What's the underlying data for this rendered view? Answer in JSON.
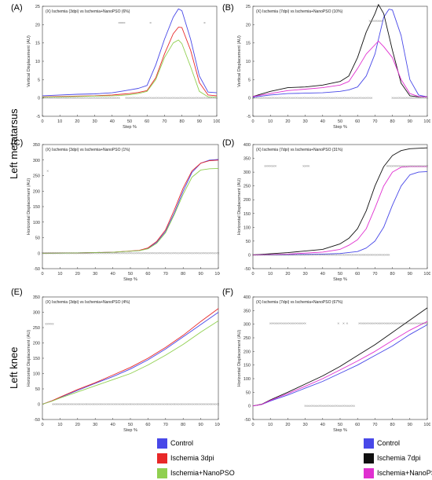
{
  "row_labels": [
    "Left metatarsus",
    "Left knee"
  ],
  "legends": [
    {
      "items": [
        {
          "label": "Control",
          "color": "#4848e8"
        },
        {
          "label": "Ischemia 3dpi",
          "color": "#e82828"
        },
        {
          "label": "Ischemia+NanoPSO",
          "color": "#90d050"
        }
      ]
    },
    {
      "items": [
        {
          "label": "Control",
          "color": "#4848e8"
        },
        {
          "label": "Ischemia 7dpi",
          "color": "#101010"
        },
        {
          "label": "Ischemia+NanoPSO",
          "color": "#e030d0"
        }
      ]
    }
  ],
  "chart_data": [
    {
      "panel": "(A)",
      "type": "line",
      "title": "(X) Ischemia (3dpi) vs Ischemia+NanoPSO (6%)",
      "xlabel": "Step %",
      "ylabel": "Vertical Displacement (AU)",
      "xlim": [
        0,
        100
      ],
      "ylim": [
        -5,
        25
      ],
      "xticks": [
        0,
        10,
        20,
        30,
        40,
        50,
        60,
        70,
        80,
        90,
        100
      ],
      "yticks": [
        -5,
        0,
        5,
        10,
        15,
        20,
        25
      ],
      "series": [
        {
          "color": "#4848e8",
          "x": [
            0,
            10,
            20,
            30,
            40,
            45,
            50,
            55,
            60,
            65,
            70,
            75,
            78,
            80,
            85,
            90,
            95,
            100
          ],
          "y": [
            0.6,
            0.8,
            1.0,
            1.1,
            1.4,
            1.8,
            2.2,
            2.6,
            3.4,
            9,
            16,
            22,
            24.3,
            23.8,
            16,
            6,
            1.6,
            1.4
          ]
        },
        {
          "color": "#e82828",
          "x": [
            0,
            10,
            20,
            30,
            40,
            45,
            50,
            55,
            60,
            65,
            70,
            75,
            78,
            80,
            85,
            90,
            95,
            100
          ],
          "y": [
            0.3,
            0.4,
            0.5,
            0.6,
            0.8,
            1.0,
            1.2,
            1.5,
            2.0,
            5.5,
            12,
            17.5,
            19.3,
            19.2,
            13,
            4.2,
            0.8,
            0.6
          ]
        },
        {
          "color": "#90d050",
          "x": [
            0,
            10,
            20,
            30,
            40,
            45,
            50,
            55,
            60,
            65,
            70,
            75,
            78,
            80,
            85,
            90,
            95,
            100
          ],
          "y": [
            0.2,
            0.3,
            0.4,
            0.5,
            0.6,
            0.7,
            0.9,
            1.2,
            1.8,
            5,
            11,
            15,
            15.8,
            14.8,
            8.5,
            1.8,
            0.3,
            0.2
          ]
        }
      ],
      "sig_top": {
        "y": 20.5,
        "x": [
          44,
          45,
          46,
          47,
          62,
          93
        ]
      },
      "sig_bottom": {
        "y": 0,
        "x_ranges": [
          [
            0,
            44
          ],
          [
            48,
            100
          ]
        ]
      }
    },
    {
      "panel": "(B)",
      "type": "line",
      "title": "(X) Ischemia (7dpi) vs Ischemia+NanoPSO (10%)",
      "xlabel": "Step %",
      "ylabel": "Vertical Displacement (AU)",
      "xlim": [
        0,
        100
      ],
      "ylim": [
        -5,
        25
      ],
      "xticks": [
        0,
        10,
        20,
        30,
        40,
        50,
        60,
        70,
        80,
        90,
        100
      ],
      "yticks": [
        -5,
        0,
        5,
        10,
        15,
        20,
        25
      ],
      "series": [
        {
          "color": "#4848e8",
          "x": [
            0,
            10,
            20,
            30,
            40,
            50,
            55,
            60,
            65,
            70,
            75,
            78,
            80,
            85,
            90,
            95,
            100
          ],
          "y": [
            0.2,
            0.8,
            1.2,
            1.3,
            1.4,
            1.8,
            2.2,
            3,
            6,
            12,
            22,
            24.2,
            24,
            17,
            5,
            0.8,
            0.3
          ]
        },
        {
          "color": "#101010",
          "x": [
            0,
            10,
            20,
            30,
            40,
            50,
            55,
            60,
            65,
            70,
            72,
            75,
            80,
            85,
            90,
            95,
            100
          ],
          "y": [
            0.4,
            1.8,
            2.8,
            3.0,
            3.5,
            4.5,
            6,
            11,
            18,
            23,
            25.5,
            23,
            13,
            4,
            0.6,
            0.3,
            0.3
          ]
        },
        {
          "color": "#e030d0",
          "x": [
            0,
            10,
            20,
            30,
            40,
            50,
            55,
            60,
            65,
            70,
            72,
            75,
            80,
            85,
            90,
            95,
            100
          ],
          "y": [
            0.4,
            1.2,
            2.0,
            2.4,
            2.8,
            3.5,
            4.5,
            8,
            12,
            14.5,
            15.5,
            14,
            11,
            5,
            1.2,
            0.4,
            0.3
          ]
        }
      ],
      "sig_top": {
        "y": 21,
        "x_ranges": [
          [
            67,
            74
          ]
        ]
      },
      "sig_bottom": {
        "y": 0,
        "x_ranges": [
          [
            0,
            68
          ],
          [
            80,
            100
          ]
        ]
      }
    },
    {
      "panel": "(C)",
      "type": "line",
      "title": "(X) Ischemia (3dpi) vs Ischemia+NanoPSO (1%)",
      "xlabel": "Step %",
      "ylabel": "Horizontal Displacement (AU)",
      "xlim": [
        0,
        100
      ],
      "ylim": [
        -50,
        350
      ],
      "xticks": [
        0,
        10,
        20,
        30,
        40,
        50,
        60,
        70,
        80,
        90,
        100
      ],
      "yticks": [
        -50,
        0,
        50,
        100,
        150,
        200,
        250,
        300,
        350
      ],
      "series": [
        {
          "color": "#4848e8",
          "x": [
            0,
            20,
            40,
            55,
            60,
            65,
            70,
            75,
            80,
            85,
            90,
            95,
            100
          ],
          "y": [
            0,
            1,
            3,
            8,
            15,
            35,
            70,
            130,
            200,
            260,
            290,
            300,
            302
          ]
        },
        {
          "color": "#e82828",
          "x": [
            0,
            20,
            40,
            55,
            60,
            65,
            70,
            75,
            80,
            85,
            90,
            95,
            100
          ],
          "y": [
            0,
            1,
            3,
            9,
            17,
            38,
            75,
            140,
            210,
            265,
            290,
            298,
            300
          ]
        },
        {
          "color": "#90d050",
          "x": [
            0,
            20,
            40,
            55,
            60,
            65,
            70,
            75,
            80,
            85,
            90,
            95,
            100
          ],
          "y": [
            0,
            1,
            3,
            8,
            14,
            32,
            66,
            125,
            190,
            245,
            268,
            272,
            273
          ]
        }
      ],
      "sig_top": {
        "y": 265,
        "x": [
          3
        ]
      },
      "sig_bottom": {
        "y": 0,
        "x_ranges": [
          [
            0,
            100
          ]
        ]
      }
    },
    {
      "panel": "(D)",
      "type": "line",
      "title": "(X) Ischemia (7dpi) vs Ischemia+NanoPSO (31%)",
      "xlabel": "Step %",
      "ylabel": "Horizontal Displacement (AU)",
      "xlim": [
        0,
        100
      ],
      "ylim": [
        -50,
        400
      ],
      "xticks": [
        0,
        10,
        20,
        30,
        40,
        50,
        60,
        70,
        80,
        90,
        100
      ],
      "yticks": [
        -50,
        0,
        50,
        100,
        150,
        200,
        250,
        300,
        350,
        400
      ],
      "series": [
        {
          "color": "#4848e8",
          "x": [
            0,
            20,
            40,
            50,
            60,
            65,
            70,
            75,
            80,
            85,
            90,
            95,
            100
          ],
          "y": [
            0,
            1,
            3,
            5,
            12,
            25,
            50,
            100,
            180,
            250,
            290,
            300,
            302
          ]
        },
        {
          "color": "#101010",
          "x": [
            0,
            20,
            40,
            50,
            55,
            60,
            65,
            70,
            75,
            80,
            85,
            90,
            100
          ],
          "y": [
            0,
            8,
            20,
            40,
            60,
            95,
            160,
            250,
            320,
            360,
            378,
            385,
            388
          ]
        },
        {
          "color": "#e030d0",
          "x": [
            0,
            20,
            40,
            50,
            55,
            60,
            65,
            70,
            75,
            80,
            85,
            90,
            100
          ],
          "y": [
            0,
            3,
            10,
            20,
            35,
            55,
            95,
            170,
            250,
            300,
            318,
            320,
            320
          ]
        }
      ],
      "sig_top": {
        "y": 322,
        "x_ranges": [
          [
            7,
            13
          ],
          [
            29,
            32
          ],
          [
            77,
            100
          ]
        ]
      },
      "sig_bottom": {
        "y": 0,
        "x_ranges": [
          [
            0,
            78
          ]
        ]
      }
    },
    {
      "panel": "(E)",
      "type": "line",
      "title": "(X) Ischemia (3dpi) vs Ischemia+NanoPSO (4%)",
      "xlabel": "Step %",
      "ylabel": "Horizontal Displacement (AU)",
      "xlim": [
        0,
        100
      ],
      "ylim": [
        -50,
        350
      ],
      "xticks": [
        0,
        10,
        20,
        30,
        40,
        50,
        60,
        70,
        80,
        90,
        100
      ],
      "yticks": [
        -50,
        0,
        50,
        100,
        150,
        200,
        250,
        300,
        350
      ],
      "series": [
        {
          "color": "#4848e8",
          "x": [
            0,
            5,
            10,
            20,
            30,
            40,
            50,
            60,
            70,
            80,
            90,
            100
          ],
          "y": [
            0,
            10,
            22,
            45,
            68,
            90,
            115,
            145,
            180,
            220,
            260,
            300
          ]
        },
        {
          "color": "#e82828",
          "x": [
            0,
            5,
            10,
            20,
            30,
            40,
            50,
            60,
            70,
            80,
            90,
            100
          ],
          "y": [
            0,
            10,
            23,
            48,
            70,
            95,
            120,
            150,
            185,
            225,
            270,
            312
          ]
        },
        {
          "color": "#90d050",
          "x": [
            0,
            5,
            10,
            20,
            30,
            40,
            50,
            60,
            70,
            80,
            90,
            100
          ],
          "y": [
            0,
            9,
            20,
            40,
            60,
            80,
            100,
            128,
            160,
            195,
            235,
            272
          ]
        }
      ],
      "sig_top": {
        "y": 262,
        "x_ranges": [
          [
            2,
            6
          ]
        ]
      },
      "sig_bottom": {
        "y": 0,
        "x_ranges": [
          [
            6,
            100
          ]
        ]
      }
    },
    {
      "panel": "(F)",
      "type": "line",
      "title": "(X) Ischemia (7dpi) vs Ischemia+NanoPSO (67%)",
      "xlabel": "Step %",
      "ylabel": "Horizontal Displacement (AU)",
      "xlim": [
        0,
        100
      ],
      "ylim": [
        -50,
        400
      ],
      "xticks": [
        0,
        10,
        20,
        30,
        40,
        50,
        60,
        70,
        80,
        90,
        100
      ],
      "yticks": [
        -50,
        0,
        50,
        100,
        150,
        200,
        250,
        300,
        350,
        400
      ],
      "series": [
        {
          "color": "#4848e8",
          "x": [
            0,
            5,
            10,
            20,
            30,
            40,
            50,
            60,
            70,
            80,
            90,
            100
          ],
          "y": [
            0,
            5,
            18,
            40,
            65,
            90,
            120,
            150,
            185,
            220,
            262,
            298
          ]
        },
        {
          "color": "#101010",
          "x": [
            0,
            5,
            10,
            20,
            30,
            40,
            50,
            60,
            70,
            80,
            90,
            100
          ],
          "y": [
            0,
            6,
            22,
            50,
            80,
            110,
            145,
            185,
            225,
            270,
            315,
            360
          ]
        },
        {
          "color": "#e030d0",
          "x": [
            0,
            5,
            10,
            20,
            30,
            40,
            50,
            60,
            70,
            80,
            90,
            100
          ],
          "y": [
            0,
            5,
            20,
            45,
            72,
            100,
            132,
            165,
            200,
            240,
            278,
            310
          ]
        }
      ],
      "sig_top": {
        "y": 303,
        "x_ranges": [
          [
            10,
            30
          ],
          [
            61,
            100
          ]
        ],
        "x": [
          49,
          52,
          54
        ]
      },
      "sig_bottom": {
        "y": 0,
        "x_ranges": [
          [
            30,
            58
          ]
        ]
      }
    }
  ]
}
